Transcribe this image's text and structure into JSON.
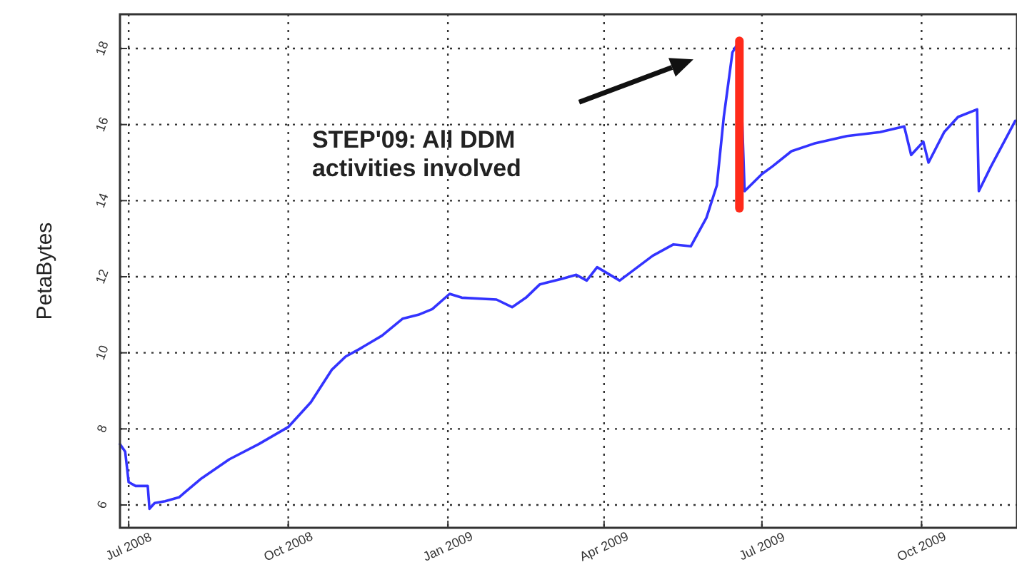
{
  "chart_data": {
    "type": "line",
    "ylabel": "PetaBytes",
    "x": [
      "2008-06-26",
      "2008-06-29",
      "2008-07-01",
      "2008-07-05",
      "2008-07-12",
      "2008-07-13",
      "2008-07-16",
      "2008-07-22",
      "2008-07-30",
      "2008-08-12",
      "2008-08-28",
      "2008-09-14",
      "2008-10-01",
      "2008-10-14",
      "2008-10-26",
      "2008-11-03",
      "2008-11-11",
      "2008-11-24",
      "2008-12-06",
      "2008-12-15",
      "2008-12-23",
      "2009-01-02",
      "2009-01-09",
      "2009-01-29",
      "2009-02-07",
      "2009-02-15",
      "2009-02-23",
      "2009-03-08",
      "2009-03-16",
      "2009-03-22",
      "2009-03-28",
      "2009-04-10",
      "2009-04-29",
      "2009-05-11",
      "2009-05-21",
      "2009-05-30",
      "2009-06-05",
      "2009-06-09",
      "2009-06-14",
      "2009-06-18",
      "2009-06-21",
      "2009-07-01",
      "2009-07-07",
      "2009-07-18",
      "2009-07-31",
      "2009-08-19",
      "2009-09-07",
      "2009-09-21",
      "2009-09-25",
      "2009-10-02",
      "2009-10-05",
      "2009-10-14",
      "2009-10-22",
      "2009-11-02",
      "2009-11-03",
      "2009-11-10",
      "2009-11-24"
    ],
    "series": [
      {
        "color": "#3333ff",
        "values": [
          7.6,
          7.4,
          6.6,
          6.5,
          6.5,
          5.9,
          6.05,
          6.1,
          6.2,
          6.7,
          7.2,
          7.6,
          8.05,
          8.7,
          9.55,
          9.9,
          10.1,
          10.45,
          10.9,
          11.0,
          11.15,
          11.55,
          11.45,
          11.4,
          11.2,
          11.45,
          11.8,
          11.95,
          12.05,
          11.9,
          12.25,
          11.9,
          12.55,
          12.85,
          12.8,
          13.55,
          14.4,
          16.2,
          17.9,
          18.2,
          14.25,
          14.7,
          14.9,
          15.3,
          15.5,
          15.7,
          15.8,
          15.95,
          15.2,
          15.55,
          15.0,
          15.8,
          16.2,
          16.4,
          14.25,
          14.9,
          16.1
        ]
      },
      {
        "color": "#ff2a1a",
        "x": [
          "2009-06-18",
          "2009-06-18"
        ],
        "values": [
          13.8,
          18.2
        ]
      }
    ],
    "xlim": [
      "2008-06-26",
      "2009-11-25"
    ],
    "xticks": [
      {
        "value": "2008-07-01",
        "label": "Jul 2008"
      },
      {
        "value": "2008-10-01",
        "label": "Oct 2008"
      },
      {
        "value": "2009-01-01",
        "label": "Jan 2009"
      },
      {
        "value": "2009-04-01",
        "label": "Apr 2009"
      },
      {
        "value": "2009-07-01",
        "label": "Jul 2009"
      },
      {
        "value": "2009-10-01",
        "label": "Oct 2009"
      }
    ],
    "ylim": [
      5.4,
      18.9
    ],
    "yticks": [
      6,
      8,
      10,
      12,
      14,
      16,
      18
    ],
    "grid": true,
    "line_style": "solid",
    "marker": "none",
    "annotations": [
      "STEP'09: All DDM activities involved"
    ]
  }
}
